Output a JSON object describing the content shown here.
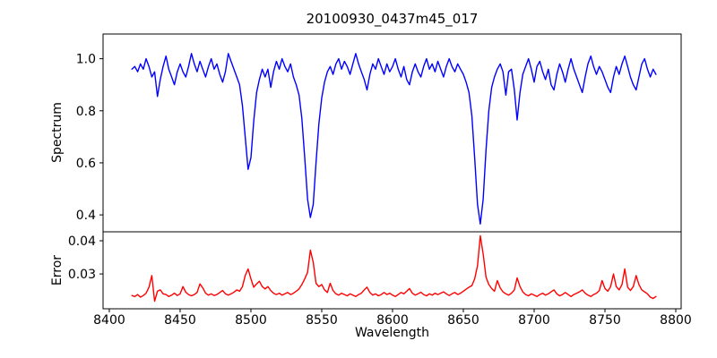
{
  "title": "20100930_0437m45_017",
  "axes": {
    "xlabel": "Wavelength",
    "top_ylabel": "Spectrum",
    "bottom_ylabel": "Error"
  },
  "colors": {
    "spectrum_line": "#0000ff",
    "error_line": "#ff0000",
    "axis": "#000000",
    "background": "#ffffff",
    "text": "#000000"
  },
  "chart_data": [
    {
      "id": "spectrum",
      "type": "line",
      "series_name": "Spectrum",
      "ylabel": "Spectrum",
      "line_color": "#0000ff",
      "grid": false,
      "xlim": [
        8395.6,
        8803.8
      ],
      "ylim": [
        0.335,
        1.095
      ],
      "yticks": [
        0.4,
        0.6,
        0.8,
        1.0
      ],
      "ytick_labels": [
        "0.4",
        "0.6",
        "0.8",
        "1.0"
      ],
      "x_start": 8416,
      "x_step": 2,
      "values": [
        0.96,
        0.97,
        0.95,
        0.98,
        0.96,
        1.0,
        0.97,
        0.93,
        0.95,
        0.855,
        0.92,
        0.97,
        1.01,
        0.96,
        0.93,
        0.9,
        0.95,
        0.98,
        0.95,
        0.93,
        0.97,
        1.02,
        0.98,
        0.95,
        0.99,
        0.96,
        0.93,
        0.97,
        1.0,
        0.96,
        0.98,
        0.94,
        0.91,
        0.95,
        1.02,
        0.99,
        0.96,
        0.93,
        0.9,
        0.82,
        0.7,
        0.575,
        0.62,
        0.76,
        0.87,
        0.92,
        0.96,
        0.93,
        0.96,
        0.89,
        0.95,
        0.99,
        0.96,
        1.0,
        0.97,
        0.95,
        0.98,
        0.93,
        0.9,
        0.86,
        0.77,
        0.62,
        0.46,
        0.39,
        0.44,
        0.6,
        0.75,
        0.85,
        0.91,
        0.95,
        0.97,
        0.94,
        0.98,
        1.0,
        0.96,
        0.99,
        0.97,
        0.94,
        0.98,
        1.02,
        0.98,
        0.95,
        0.92,
        0.88,
        0.94,
        0.98,
        0.96,
        1.0,
        0.97,
        0.94,
        0.98,
        0.95,
        0.97,
        1.0,
        0.96,
        0.93,
        0.97,
        0.92,
        0.9,
        0.95,
        0.98,
        0.95,
        0.93,
        0.97,
        1.0,
        0.96,
        0.98,
        0.95,
        0.99,
        0.96,
        0.93,
        0.97,
        1.0,
        0.97,
        0.95,
        0.98,
        0.96,
        0.94,
        0.91,
        0.87,
        0.78,
        0.62,
        0.44,
        0.365,
        0.46,
        0.65,
        0.8,
        0.89,
        0.93,
        0.96,
        0.98,
        0.95,
        0.86,
        0.95,
        0.96,
        0.88,
        0.765,
        0.87,
        0.94,
        0.97,
        1.0,
        0.96,
        0.91,
        0.97,
        0.99,
        0.95,
        0.92,
        0.96,
        0.9,
        0.88,
        0.94,
        0.98,
        0.95,
        0.91,
        0.96,
        1.0,
        0.96,
        0.93,
        0.9,
        0.87,
        0.93,
        0.98,
        1.01,
        0.97,
        0.94,
        0.97,
        0.95,
        0.92,
        0.89,
        0.87,
        0.93,
        0.97,
        0.94,
        0.98,
        1.01,
        0.97,
        0.93,
        0.9,
        0.88,
        0.93,
        0.98,
        1.0,
        0.96,
        0.93,
        0.96,
        0.94
      ]
    },
    {
      "id": "error",
      "type": "line",
      "series_name": "Error",
      "ylabel": "Error",
      "xlabel": "Wavelength",
      "line_color": "#ff0000",
      "grid": false,
      "xlim": [
        8395.6,
        8803.8
      ],
      "ylim": [
        0.0195,
        0.0427
      ],
      "yticks": [
        0.03,
        0.04
      ],
      "ytick_labels": [
        "0.03",
        "0.04"
      ],
      "xticks": [
        8400,
        8450,
        8500,
        8550,
        8600,
        8650,
        8700,
        8750,
        8800
      ],
      "xtick_labels": [
        "8400",
        "8450",
        "8500",
        "8550",
        "8600",
        "8650",
        "8700",
        "8750",
        "8800"
      ],
      "x_start": 8416,
      "x_step": 2,
      "values": [
        0.0235,
        0.0232,
        0.0238,
        0.023,
        0.0235,
        0.0242,
        0.026,
        0.0295,
        0.0218,
        0.0248,
        0.0252,
        0.024,
        0.0238,
        0.0232,
        0.0236,
        0.0242,
        0.0235,
        0.024,
        0.0262,
        0.0245,
        0.0238,
        0.0234,
        0.0238,
        0.0244,
        0.027,
        0.0258,
        0.0242,
        0.0236,
        0.024,
        0.0235,
        0.0238,
        0.0244,
        0.025,
        0.024,
        0.0236,
        0.024,
        0.0245,
        0.0252,
        0.0248,
        0.0262,
        0.0295,
        0.0315,
        0.0285,
        0.026,
        0.027,
        0.0278,
        0.0262,
        0.0255,
        0.0262,
        0.025,
        0.0242,
        0.0238,
        0.0242,
        0.0236,
        0.024,
        0.0244,
        0.0238,
        0.0242,
        0.0248,
        0.0255,
        0.0268,
        0.0285,
        0.0305,
        0.0372,
        0.0335,
        0.0272,
        0.0262,
        0.0268,
        0.0252,
        0.0244,
        0.0272,
        0.025,
        0.024,
        0.0236,
        0.0242,
        0.0238,
        0.0234,
        0.024,
        0.0236,
        0.0232,
        0.0238,
        0.0242,
        0.0252,
        0.026,
        0.0244,
        0.0236,
        0.024,
        0.0234,
        0.0238,
        0.0244,
        0.0238,
        0.0242,
        0.0236,
        0.0232,
        0.0238,
        0.0244,
        0.024,
        0.0248,
        0.0256,
        0.0242,
        0.0236,
        0.024,
        0.0245,
        0.0238,
        0.0234,
        0.024,
        0.0236,
        0.0242,
        0.0238,
        0.0242,
        0.0246,
        0.024,
        0.0235,
        0.024,
        0.0244,
        0.0238,
        0.0242,
        0.0248,
        0.0254,
        0.026,
        0.0265,
        0.0285,
        0.0325,
        0.0415,
        0.036,
        0.029,
        0.0268,
        0.0256,
        0.0248,
        0.028,
        0.0258,
        0.0246,
        0.024,
        0.0236,
        0.0242,
        0.0252,
        0.0288,
        0.0262,
        0.0246,
        0.0238,
        0.0234,
        0.024,
        0.0236,
        0.0232,
        0.0238,
        0.0242,
        0.0236,
        0.024,
        0.0246,
        0.0252,
        0.024,
        0.0234,
        0.0238,
        0.0244,
        0.0238,
        0.0232,
        0.0238,
        0.0242,
        0.0246,
        0.0252,
        0.0242,
        0.0236,
        0.0232,
        0.0238,
        0.0242,
        0.025,
        0.028,
        0.0256,
        0.0248,
        0.0262,
        0.03,
        0.0262,
        0.0252,
        0.0268,
        0.0315,
        0.026,
        0.025,
        0.0262,
        0.0295,
        0.0268,
        0.0252,
        0.0246,
        0.024,
        0.023,
        0.0226,
        0.0232
      ]
    }
  ]
}
